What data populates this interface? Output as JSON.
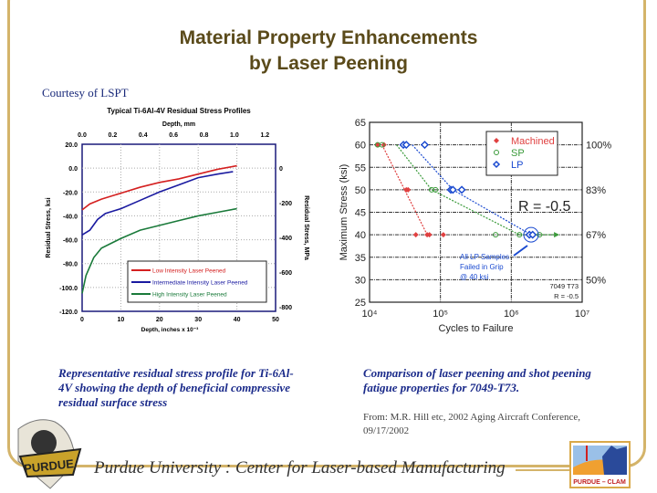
{
  "slide": {
    "title_line1": "Material Property Enhancements",
    "title_line2": "by Laser Peening",
    "courtesy": "Courtesy of LSPT",
    "caption_left": "Representative residual stress profile for Ti-6Al-4V showing the depth of beneficial compressive residual surface stress",
    "caption_right": "Comparison of laser peening and shot peening fatigue properties for 7049-T73.",
    "source_line1": "From: M.R. Hill etc,  2002 Aging Aircraft Conference,",
    "source_line2": "09/17/2002",
    "footer": "Purdue University :  Center for Laser-based Manufacturing",
    "logo_left": "PURDUE",
    "logo_right": "PURDUE – CLAM",
    "frame_color": "#d4b46a"
  },
  "chart_data": [
    {
      "type": "line",
      "title": "Typical Ti-6Al-4V Residual Stress Profiles",
      "xlabel": "Depth, inches x 10⁻³",
      "x2label": "Depth, mm",
      "ylabel": "Residual Stress, ksi",
      "y2label": "Residual Stress, MPa",
      "xlim": [
        0,
        50
      ],
      "ylim": [
        -120,
        20
      ],
      "xticks": [
        "0",
        "10",
        "20",
        "30",
        "40",
        "50"
      ],
      "yticks": [
        "20.0",
        "0.0",
        "-20.0",
        "-40.0",
        "-60.0",
        "-80.0",
        "-100.0",
        "-120.0"
      ],
      "x2ticks": [
        "0.0",
        "0.2",
        "0.4",
        "0.6",
        "0.8",
        "1.0",
        "1.2"
      ],
      "y2ticks": [
        "0",
        "-200",
        "-400",
        "-600",
        "-800"
      ],
      "grid": true,
      "legend": "bottom-right",
      "series": [
        {
          "name": "Low Intensity Laser Peened",
          "color": "#d42020",
          "x": [
            0,
            2,
            5,
            10,
            15,
            20,
            25,
            30,
            35,
            40
          ],
          "y": [
            -35,
            -30,
            -26,
            -21,
            -16,
            -12,
            -9,
            -5,
            -1,
            2
          ]
        },
        {
          "name": "Intermediate Intensity Laser Peened",
          "color": "#1a1aa0",
          "x": [
            0,
            2,
            4,
            6,
            10,
            15,
            20,
            25,
            30,
            35,
            39
          ],
          "y": [
            -56,
            -52,
            -43,
            -38,
            -34,
            -27,
            -20,
            -14,
            -8,
            -5,
            -3
          ]
        },
        {
          "name": "High Intensity Laser Peened",
          "color": "#1a7a3a",
          "x": [
            0,
            1,
            3,
            5,
            10,
            15,
            20,
            25,
            30,
            35,
            40
          ],
          "y": [
            -105,
            -90,
            -75,
            -67,
            -59,
            -52,
            -48,
            -44,
            -40,
            -37,
            -34
          ]
        }
      ]
    },
    {
      "type": "scatter",
      "xlabel": "Cycles to Failure",
      "ylabel": "Maximum Stress (ksi)",
      "xscale": "log",
      "xlim": [
        10000,
        10000000
      ],
      "ylim": [
        25,
        65
      ],
      "xticks": [
        "10⁴",
        "10⁵",
        "10⁶",
        "10⁷"
      ],
      "yticks": [
        "65",
        "60",
        "55",
        "50",
        "45",
        "40",
        "35",
        "30",
        "25"
      ],
      "y2ticks": [
        {
          "y": 60,
          "label": "100%"
        },
        {
          "y": 50,
          "label": "83%"
        },
        {
          "y": 40,
          "label": "67%"
        },
        {
          "y": 30,
          "label": "50%"
        }
      ],
      "grid": true,
      "legend": "top-right",
      "annotations": [
        "R = -0.5",
        "All LP Samples",
        "Failed in Grip",
        "@ 40 ksi",
        "7049 T73",
        "R = -0.5"
      ],
      "series": [
        {
          "name": "Machined",
          "color": "#e04040",
          "marker": "filled-diamond",
          "x": [
            13000,
            16000,
            33000,
            35000,
            45000,
            65000,
            70000,
            110000
          ],
          "y": [
            60,
            60,
            50,
            50,
            40,
            40,
            40,
            40
          ],
          "trend": {
            "x": [
              15000,
              65000
            ],
            "y": [
              60,
              40
            ]
          }
        },
        {
          "name": "SP",
          "color": "#3a9a3a",
          "marker": "open-circle",
          "x": [
            13000,
            15000,
            75000,
            85000,
            600000,
            1300000,
            2500000
          ],
          "y": [
            60,
            60,
            50,
            50,
            40,
            40,
            40
          ],
          "trend": {
            "x": [
              24000,
              75000,
              1300000
            ],
            "y": [
              60,
              50,
              40
            ]
          },
          "runout_to": 4000000
        },
        {
          "name": "LP",
          "color": "#1a4ad0",
          "marker": "open-diamond",
          "x": [
            30000,
            33000,
            60000,
            140000,
            150000,
            200000,
            1800000,
            2000000
          ],
          "y": [
            60,
            60,
            60,
            50,
            50,
            50,
            40,
            40
          ],
          "trend": {
            "x": [
              40000,
              150000,
              1900000
            ],
            "y": [
              60,
              50,
              40
            ]
          }
        }
      ]
    }
  ]
}
